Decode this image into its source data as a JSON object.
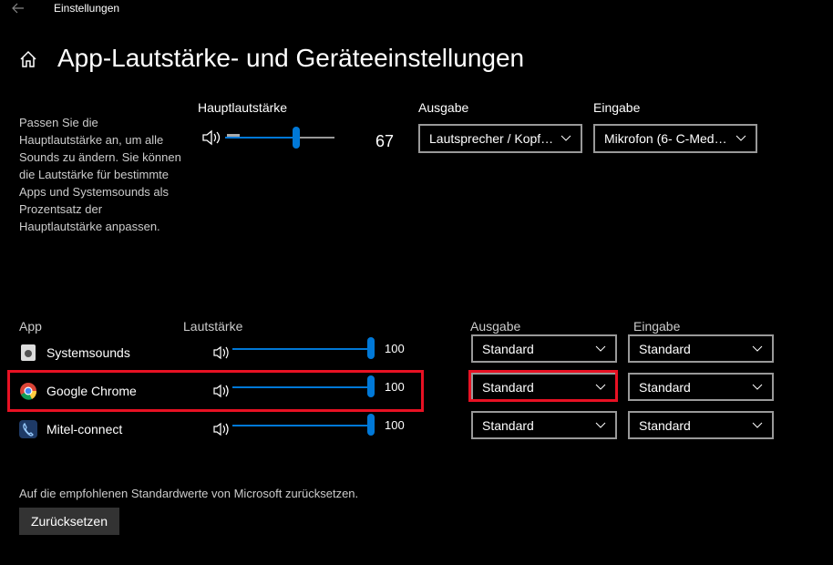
{
  "header": {
    "window_title": "Einstellungen",
    "title": "App-Lautstärke- und Geräteeinstellungen"
  },
  "description": "Passen Sie die Hauptlautstärke an, um alle Sounds zu ändern. Sie können die Lautstärke für bestimmte Apps und Systemsounds als Prozentsatz der Hauptlautstärke anpassen.",
  "master": {
    "label": "Hauptlautstärke",
    "value": 67,
    "output": {
      "label": "Ausgabe",
      "value": "Lautsprecher / Kopf…"
    },
    "input": {
      "label": "Eingabe",
      "value": "Mikrofon (6- C-Med…"
    }
  },
  "apps": {
    "columns": {
      "app": "App",
      "volume": "Lautstärke",
      "output": "Ausgabe",
      "input": "Eingabe"
    },
    "rows": [
      {
        "name": "Systemsounds",
        "volume": 100,
        "output": "Standard",
        "input": "Standard"
      },
      {
        "name": "Google Chrome",
        "volume": 100,
        "output": "Standard",
        "input": "Standard"
      },
      {
        "name": "Mitel-connect",
        "volume": 100,
        "output": "Standard",
        "input": "Standard"
      }
    ]
  },
  "reset": {
    "text": "Auf die empfohlenen Standardwerte von Microsoft zurücksetzen.",
    "button": "Zurücksetzen"
  }
}
